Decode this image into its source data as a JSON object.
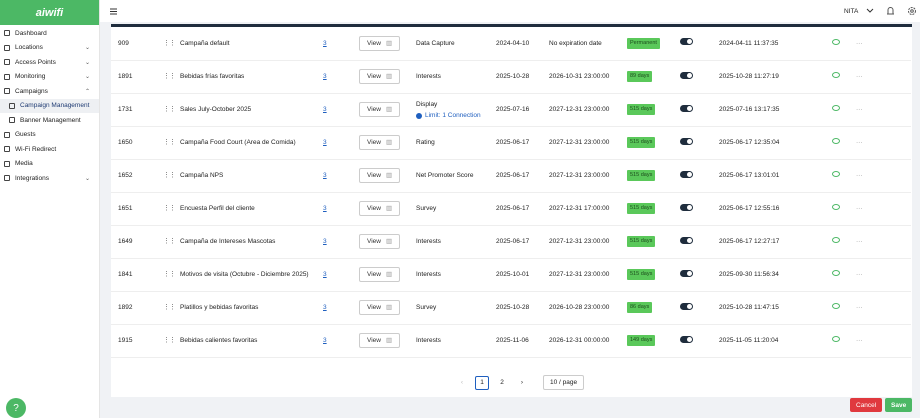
{
  "sidebar": {
    "logo": "aiwifi",
    "nav": [
      {
        "label": "Dashboard"
      },
      {
        "label": "Locations"
      },
      {
        "label": "Access Points"
      },
      {
        "label": "Monitoring"
      },
      {
        "label": "Campaigns",
        "children": [
          {
            "label": "Campaign Management"
          },
          {
            "label": "Banner Management"
          }
        ]
      },
      {
        "label": "Guests"
      },
      {
        "label": "Wi-Fi Redirect"
      },
      {
        "label": "Media"
      },
      {
        "label": "Integrations"
      }
    ]
  },
  "header": {
    "user": "NITA"
  },
  "table": {
    "rows": [
      {
        "id": 909,
        "name": "Campaña default",
        "count": 3,
        "action": "View",
        "type": "Data Capture",
        "start": "2024-04-10",
        "end": "No expiration date",
        "badge": "Permanent",
        "created": "2024-04-11 11:37:35"
      },
      {
        "id": 1891,
        "name": "Bebidas frías favoritas",
        "count": 3,
        "action": "View",
        "type": "Interests",
        "start": "2025-10-28",
        "end": "2026-10-31 23:00:00",
        "badge": "89 days",
        "created": "2025-10-28 11:27:19"
      },
      {
        "id": 1731,
        "name": "Sales July-October 2025",
        "count": 3,
        "action": "View",
        "type": "Display",
        "limit": "Limit: 1 Connection",
        "start": "2025-07-16",
        "end": "2027-12-31 23:00:00",
        "badge": "515 days",
        "created": "2025-07-16 13:17:35"
      },
      {
        "id": 1650,
        "name": "Campaña Food Court (Area de Comida)",
        "count": 3,
        "action": "View",
        "type": "Rating",
        "start": "2025-06-17",
        "end": "2027-12-31 23:00:00",
        "badge": "515 days",
        "created": "2025-06-17 12:35:04"
      },
      {
        "id": 1652,
        "name": "Campaña NPS",
        "count": 3,
        "action": "View",
        "type": "Net Promoter Score",
        "start": "2025-06-17",
        "end": "2027-12-31 23:00:00",
        "badge": "515 days",
        "created": "2025-06-17 13:01:01"
      },
      {
        "id": 1651,
        "name": "Encuesta Perfil del cliente",
        "count": 3,
        "action": "View",
        "type": "Survey",
        "start": "2025-06-17",
        "end": "2027-12-31 17:00:00",
        "badge": "515 days",
        "created": "2025-06-17 12:55:16"
      },
      {
        "id": 1649,
        "name": "Campaña de Intereses Mascotas",
        "count": 3,
        "action": "View",
        "type": "Interests",
        "start": "2025-06-17",
        "end": "2027-12-31 23:00:00",
        "badge": "515 days",
        "created": "2025-06-17 12:27:17"
      },
      {
        "id": 1841,
        "name": "Motivos de visita (Octubre - Diciembre 2025)",
        "count": 3,
        "action": "View",
        "type": "Interests",
        "start": "2025-10-01",
        "end": "2027-12-31 23:00:00",
        "badge": "515 days",
        "created": "2025-09-30 11:56:34"
      },
      {
        "id": 1892,
        "name": "Platillos y bebidas favoritas",
        "count": 3,
        "action": "View",
        "type": "Survey",
        "start": "2025-10-28",
        "end": "2026-10-28 23:00:00",
        "badge": "86 days",
        "created": "2025-10-28 11:47:15"
      },
      {
        "id": 1915,
        "name": "Bebidas calientes favoritas",
        "count": 3,
        "action": "View",
        "type": "Interests",
        "start": "2025-11-06",
        "end": "2026-12-31 00:00:00",
        "badge": "149 days",
        "created": "2025-11-05 11:20:04"
      }
    ]
  },
  "pagination": {
    "pages": [
      1,
      2
    ],
    "page_size": "10 / page"
  },
  "footer": {
    "cancel": "Cancel",
    "save": "Save",
    "help": "?"
  }
}
